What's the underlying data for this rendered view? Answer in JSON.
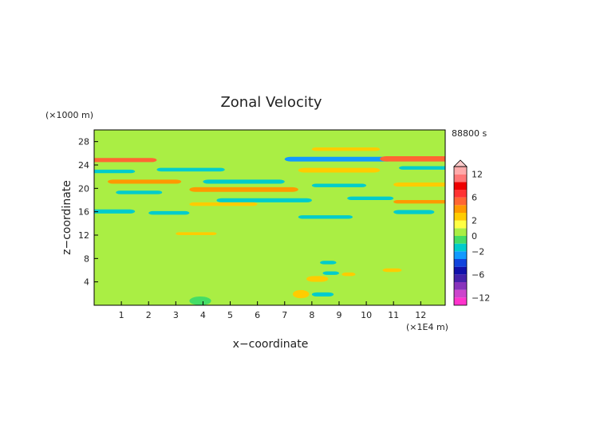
{
  "chart_data": {
    "type": "heatmap",
    "title": "Zonal Velocity",
    "xlabel": "x−coordinate",
    "ylabel": "z−coordinate",
    "x_unit": "(×1E4 m)",
    "y_unit": "(×1000 m)",
    "time_label": "88800 s",
    "xlim": [
      0,
      12.9
    ],
    "ylim": [
      0,
      30
    ],
    "x_ticks": [
      {
        "value": 1,
        "label": "1"
      },
      {
        "value": 2,
        "label": "2"
      },
      {
        "value": 3,
        "label": "3"
      },
      {
        "value": 4,
        "label": "4"
      },
      {
        "value": 5,
        "label": "5"
      },
      {
        "value": 6,
        "label": "6"
      },
      {
        "value": 7,
        "label": "7"
      },
      {
        "value": 8,
        "label": "8"
      },
      {
        "value": 9,
        "label": "9"
      },
      {
        "value": 10,
        "label": "10"
      },
      {
        "value": 11,
        "label": "11"
      },
      {
        "value": 12,
        "label": "12"
      }
    ],
    "y_ticks": [
      {
        "value": 4,
        "label": "4"
      },
      {
        "value": 8,
        "label": "8"
      },
      {
        "value": 12,
        "label": "12"
      },
      {
        "value": 16,
        "label": "16"
      },
      {
        "value": 20,
        "label": "20"
      },
      {
        "value": 24,
        "label": "24"
      },
      {
        "value": 28,
        "label": "28"
      }
    ],
    "colorbar": {
      "levels": [
        -14,
        -12,
        -10,
        -8,
        -6,
        -4,
        -3,
        -2,
        -1,
        0,
        1,
        2,
        3,
        4,
        6,
        8,
        10,
        12,
        14
      ],
      "colors": [
        "#ff33cc",
        "#cc44cc",
        "#8833bb",
        "#4422aa",
        "#1111aa",
        "#1144dd",
        "#1199ff",
        "#00cccc",
        "#44dd66",
        "#aaee44",
        "#ffff44",
        "#ffcc00",
        "#ff9900",
        "#ff6633",
        "#ff3333",
        "#ee0000",
        "#ff7777",
        "#ffaaaa"
      ],
      "tick_labels": [
        {
          "value": 12,
          "label": "12"
        },
        {
          "value": 6,
          "label": "6"
        },
        {
          "value": 2,
          "label": "2"
        },
        {
          "value": 0,
          "label": "0"
        },
        {
          "value": -2,
          "label": "−2"
        },
        {
          "value": -6,
          "label": "−6"
        },
        {
          "value": -12,
          "label": "−12"
        }
      ]
    },
    "field": {
      "background_value": 0.5,
      "features": [
        {
          "x": [
            -0.5,
            2.3
          ],
          "z": [
            24.5,
            25.2
          ],
          "value": 4
        },
        {
          "x": [
            -0.5,
            1.5
          ],
          "z": [
            22.6,
            23.2
          ],
          "value": -2
        },
        {
          "x": [
            2.3,
            4.8
          ],
          "z": [
            22.9,
            23.5
          ],
          "value": -2
        },
        {
          "x": [
            0.5,
            3.2
          ],
          "z": [
            20.8,
            21.5
          ],
          "value": 3
        },
        {
          "x": [
            0.8,
            2.5
          ],
          "z": [
            19.0,
            19.6
          ],
          "value": -2
        },
        {
          "x": [
            3.5,
            7.5
          ],
          "z": [
            19.4,
            20.2
          ],
          "value": 3
        },
        {
          "x": [
            4.0,
            7.0
          ],
          "z": [
            20.8,
            21.5
          ],
          "value": -1.5
        },
        {
          "x": [
            4.5,
            8.0
          ],
          "z": [
            17.6,
            18.3
          ],
          "value": -2
        },
        {
          "x": [
            3.5,
            6.0
          ],
          "z": [
            17.0,
            17.6
          ],
          "value": 2.5
        },
        {
          "x": [
            7.0,
            11.0
          ],
          "z": [
            24.6,
            25.4
          ],
          "value": -2.5
        },
        {
          "x": [
            8.0,
            10.5
          ],
          "z": [
            26.4,
            27.0
          ],
          "value": 2.5
        },
        {
          "x": [
            10.5,
            13.5
          ],
          "z": [
            24.6,
            25.5
          ],
          "value": 4
        },
        {
          "x": [
            11.2,
            13.2
          ],
          "z": [
            23.2,
            23.8
          ],
          "value": -2
        },
        {
          "x": [
            7.5,
            10.5
          ],
          "z": [
            22.7,
            23.5
          ],
          "value": 2.5
        },
        {
          "x": [
            8.0,
            10.0
          ],
          "z": [
            20.2,
            20.8
          ],
          "value": -2
        },
        {
          "x": [
            11.0,
            13.0
          ],
          "z": [
            20.3,
            21.0
          ],
          "value": 2.5
        },
        {
          "x": [
            11.0,
            13.0
          ],
          "z": [
            17.4,
            18.0
          ],
          "value": 3
        },
        {
          "x": [
            9.3,
            11.0
          ],
          "z": [
            18.0,
            18.6
          ],
          "value": -2
        },
        {
          "x": [
            -0.5,
            1.5
          ],
          "z": [
            15.7,
            16.4
          ],
          "value": -2
        },
        {
          "x": [
            2.0,
            3.5
          ],
          "z": [
            15.5,
            16.1
          ],
          "value": -1.5
        },
        {
          "x": [
            7.5,
            9.5
          ],
          "z": [
            14.8,
            15.4
          ],
          "value": -1.5
        },
        {
          "x": [
            11.0,
            12.5
          ],
          "z": [
            15.6,
            16.3
          ],
          "value": -1.5
        },
        {
          "x": [
            3.0,
            4.5
          ],
          "z": [
            12.0,
            12.5
          ],
          "value": 2.5
        },
        {
          "x": [
            7.8,
            8.6
          ],
          "z": [
            4.0,
            5.0
          ],
          "value": 2.5
        },
        {
          "x": [
            7.3,
            7.9
          ],
          "z": [
            1.2,
            2.6
          ],
          "value": 2.5
        },
        {
          "x": [
            8.0,
            8.8
          ],
          "z": [
            1.5,
            2.2
          ],
          "value": -2
        },
        {
          "x": [
            8.4,
            9.0
          ],
          "z": [
            5.2,
            5.8
          ],
          "value": -2
        },
        {
          "x": [
            8.3,
            8.9
          ],
          "z": [
            7.0,
            7.6
          ],
          "value": -2
        },
        {
          "x": [
            9.1,
            9.6
          ],
          "z": [
            5.0,
            5.6
          ],
          "value": 2.5
        },
        {
          "x": [
            10.6,
            11.3
          ],
          "z": [
            5.7,
            6.3
          ],
          "value": 2.5
        },
        {
          "x": [
            3.5,
            4.3
          ],
          "z": [
            0.0,
            1.5
          ],
          "value": -1
        }
      ]
    }
  }
}
